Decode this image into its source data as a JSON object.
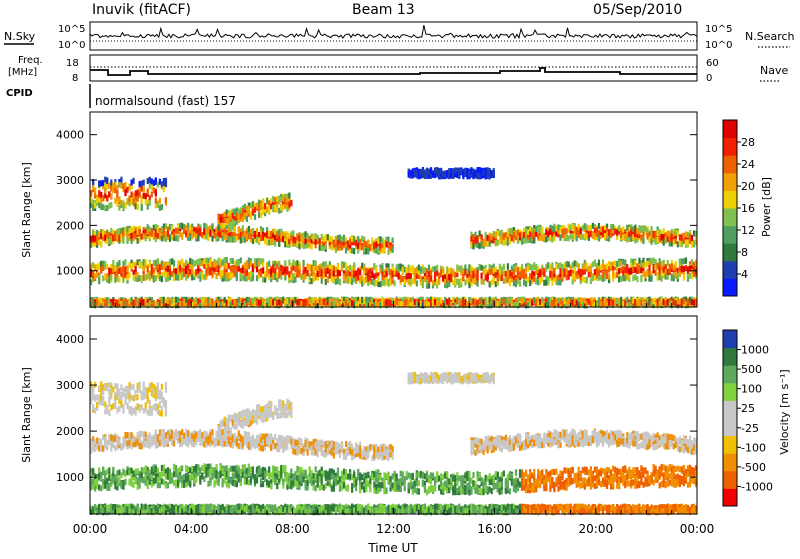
{
  "header": {
    "station": "Inuvik (fitACF)",
    "beam": "Beam 13",
    "date": "05/Sep/2010"
  },
  "panel_labels": {
    "nsky": "N.Sky",
    "nsearch": "N.Search",
    "freq_line1": "Freq.",
    "freq_line2": "[MHz]",
    "nave": "Nave",
    "cpid": "CPID",
    "cpid_value": "normalsound (fast) 157"
  },
  "colors": {
    "power_scale": [
      "#0a1aff",
      "#1f3fb0",
      "#2f7a3c",
      "#4fa060",
      "#7fc050",
      "#f0d000",
      "#f0a000",
      "#f06000",
      "#f02000",
      "#e00000"
    ],
    "velocity_scale": [
      "#2040b0",
      "#2f7a3c",
      "#5fa860",
      "#80d040",
      "#c8c8c8",
      "#c8c8c8",
      "#f0c000",
      "#f09000",
      "#f06000",
      "#f00000"
    ]
  },
  "chart_data": [
    {
      "type": "line",
      "name": "noise-panel",
      "y_left_ticks": [
        "10^5",
        "10^0"
      ],
      "y_right_ticks": [
        "10^5",
        "10^0"
      ],
      "left_label": "N.Sky",
      "right_label": "N.Search"
    },
    {
      "type": "line",
      "name": "frequency-panel",
      "y_left_ticks": [
        "18",
        "8"
      ],
      "y_right_ticks": [
        "60",
        "0"
      ],
      "left_label": "Freq. [MHz]",
      "right_label": "Nave"
    },
    {
      "type": "heatmap",
      "name": "power",
      "ylabel": "Slant Range [km]",
      "y_ticks": [
        "1000",
        "2000",
        "3000",
        "4000"
      ],
      "ylim": [
        200,
        4500
      ],
      "colorbar_label": "Power [dB]",
      "colorbar_ticks": [
        "4",
        "8",
        "12",
        "16",
        "20",
        "24",
        "28"
      ],
      "xlim_hours": [
        0,
        24
      ]
    },
    {
      "type": "heatmap",
      "name": "velocity",
      "ylabel": "Slant Range [km]",
      "y_ticks": [
        "1000",
        "2000",
        "3000",
        "4000"
      ],
      "ylim": [
        200,
        4500
      ],
      "colorbar_label": "Velocity [m s⁻¹]",
      "colorbar_ticks": [
        "1000",
        "500",
        "100",
        "25",
        "-25",
        "-100",
        "-500",
        "-1000"
      ],
      "xlim_hours": [
        0,
        24
      ]
    }
  ],
  "x_axis": {
    "ticks": [
      "00:00",
      "04:00",
      "08:00",
      "12:00",
      "16:00",
      "20:00",
      "00:00"
    ],
    "label": "Time UT"
  }
}
